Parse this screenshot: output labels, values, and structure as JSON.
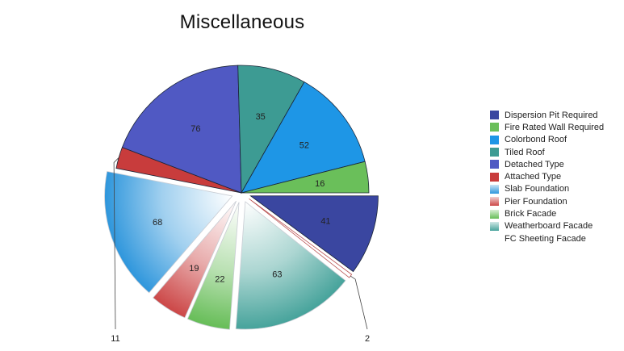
{
  "chart_data": {
    "type": "pie",
    "title": "Miscellaneous",
    "legend_position": "right",
    "slices": [
      {
        "label": "Dispersion Pit Required",
        "value": 41,
        "color": "#3a46a0",
        "style": "solid",
        "exploded": true
      },
      {
        "label": "FC Sheeting Facade",
        "value": 2,
        "color": "#ffffff",
        "style": "outline",
        "exploded": true
      },
      {
        "label": "Weatherboard Facade",
        "value": 63,
        "color": "#46a39b",
        "style": "gradient",
        "exploded": true
      },
      {
        "label": "Brick Facade",
        "value": 22,
        "color": "#66bd57",
        "style": "gradient",
        "exploded": true
      },
      {
        "label": "Pier Foundation",
        "value": 19,
        "color": "#cc4747",
        "style": "gradient",
        "exploded": true
      },
      {
        "label": "Slab Foundation",
        "value": 68,
        "color": "#2e96dc",
        "style": "gradient",
        "exploded": true
      },
      {
        "label": "Attached Type",
        "value": 11,
        "color": "#c83c3c",
        "style": "solid",
        "exploded": false
      },
      {
        "label": "Detached Type",
        "value": 76,
        "color": "#5059c3",
        "style": "solid",
        "exploded": false
      },
      {
        "label": "Tiled Roof",
        "value": 35,
        "color": "#3d9b93",
        "style": "solid",
        "exploded": false
      },
      {
        "label": "Colorbond Roof",
        "value": 52,
        "color": "#1e96e6",
        "style": "solid",
        "exploded": false
      },
      {
        "label": "Fire Rated Wall Required",
        "value": 16,
        "color": "#6abf5a",
        "style": "solid",
        "exploded": false
      }
    ],
    "legend": [
      {
        "label": "Dispersion Pit Required",
        "color": "#3a46a0",
        "style": "solid"
      },
      {
        "label": "Fire Rated Wall Required",
        "color": "#6abf5a",
        "style": "solid"
      },
      {
        "label": "Colorbond Roof",
        "color": "#1e96e6",
        "style": "solid"
      },
      {
        "label": "Tiled Roof",
        "color": "#3d9b93",
        "style": "solid"
      },
      {
        "label": "Detached Type",
        "color": "#5059c3",
        "style": "solid"
      },
      {
        "label": "Attached Type",
        "color": "#c83c3c",
        "style": "solid"
      },
      {
        "label": "Slab Foundation",
        "color": "#2e96dc",
        "style": "gradient"
      },
      {
        "label": "Pier Foundation",
        "color": "#cc4747",
        "style": "gradient"
      },
      {
        "label": "Brick Facade",
        "color": "#66bd57",
        "style": "gradient"
      },
      {
        "label": "Weatherboard Facade",
        "color": "#46a39b",
        "style": "gradient"
      },
      {
        "label": "FC Sheeting Facade",
        "color": "#ffffff",
        "style": "none"
      }
    ]
  }
}
